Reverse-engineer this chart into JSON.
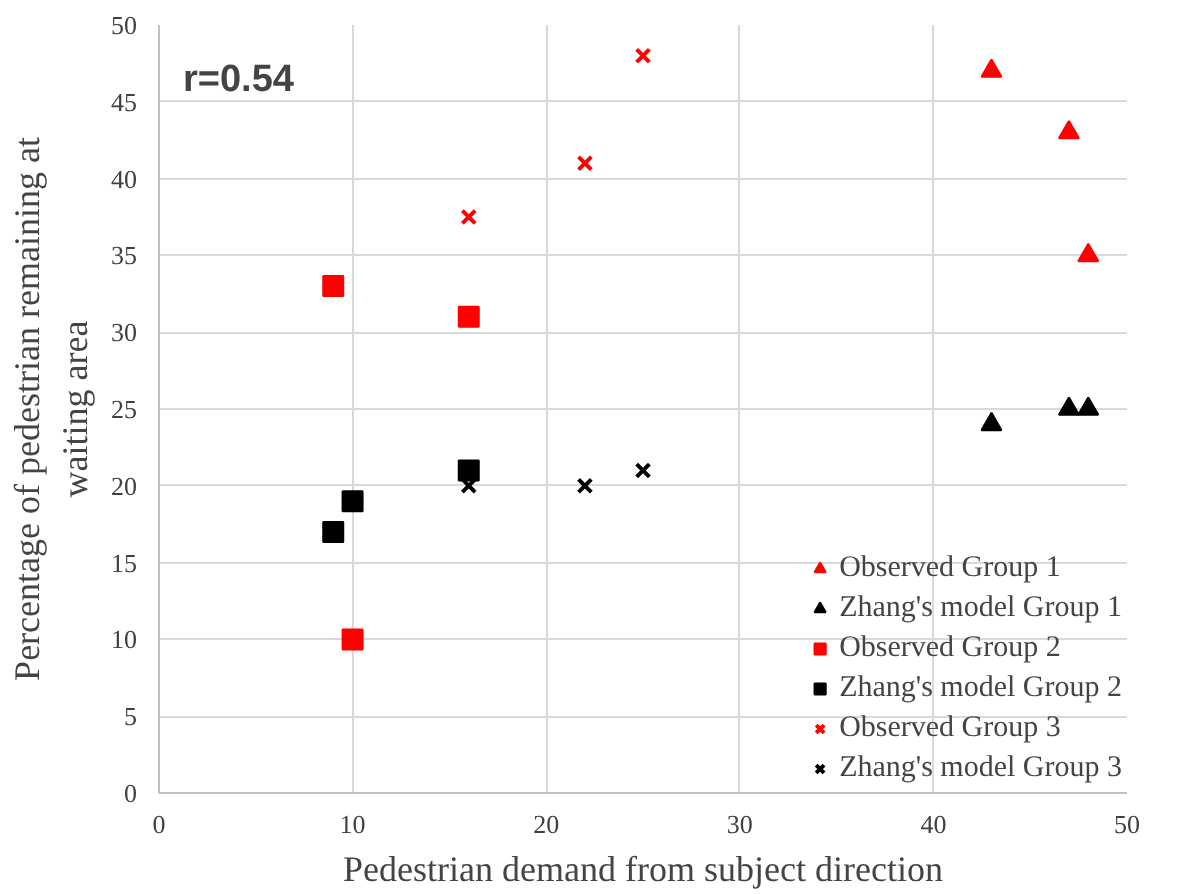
{
  "chart_data": {
    "type": "scatter",
    "xlabel": "Pedestrian demand from subject direction",
    "ylabel": "Percentage of pedestrian remaining at\nwaiting area",
    "xlim": [
      0,
      50
    ],
    "xticks": [
      0,
      10,
      20,
      30,
      40,
      50
    ],
    "ylim": [
      0,
      50
    ],
    "yticks": [
      0,
      5,
      10,
      15,
      20,
      25,
      30,
      35,
      40,
      45,
      50
    ],
    "grid": true,
    "legend": "bottom right",
    "annotations": [
      "r=0.54"
    ],
    "series": [
      {
        "name": "Observed Group 1",
        "color": "#ff0000",
        "marker": "triangle",
        "x": [
          43,
          47,
          48
        ],
        "values": [
          47,
          43,
          35
        ]
      },
      {
        "name": "Zhang's model Group 1",
        "color": "#000000",
        "marker": "triangle",
        "x": [
          43,
          47,
          48
        ],
        "values": [
          24,
          25,
          25
        ]
      },
      {
        "name": "Observed Group 2",
        "color": "#ff0000",
        "marker": "square",
        "x": [
          9,
          16,
          10
        ],
        "values": [
          33,
          31,
          10
        ]
      },
      {
        "name": "Zhang's model Group 2",
        "color": "#000000",
        "marker": "square",
        "x": [
          9,
          10,
          16
        ],
        "values": [
          17,
          19,
          21
        ]
      },
      {
        "name": "Observed Group 3",
        "color": "#ff0000",
        "marker": "cross",
        "x": [
          16,
          22,
          25
        ],
        "values": [
          37.5,
          41,
          48
        ]
      },
      {
        "name": "Zhang's model Group 3",
        "color": "#000000",
        "marker": "cross",
        "x": [
          16,
          22,
          25
        ],
        "values": [
          20,
          20,
          21
        ]
      }
    ]
  }
}
